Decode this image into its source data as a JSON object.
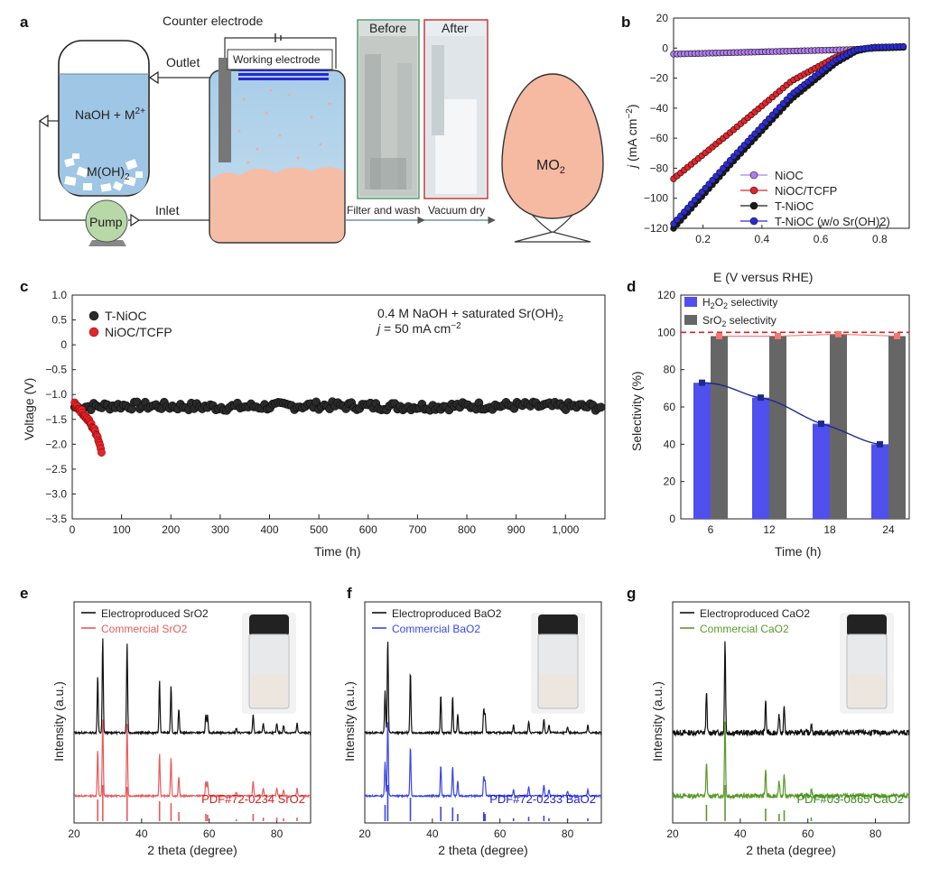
{
  "colors": {
    "black": "#1a1a1a",
    "red": "#e5252a",
    "blue": "#2b2bd6",
    "purple": "#b27cf0",
    "pink": "#f07a72",
    "sro2": "#e85a5a",
    "bao2": "#3a46e6",
    "cao2": "#5a9a2a",
    "h2o2_bar": "#5050ee",
    "sro2_bar": "#666666",
    "liquid": "#9fc6e4",
    "precip": "#f6b9a2"
  },
  "panel_a": {
    "letter": "a",
    "counter_electrode": "Counter electrode",
    "outlet": "Outlet",
    "working_electrode": "Working electrode",
    "inlet": "Inlet",
    "solution": "NaOH + M",
    "solution_sup": "2+",
    "hydroxide": "M(OH)",
    "hydroxide_sub": "2",
    "pump": "Pump",
    "before": "Before",
    "after": "After",
    "filter": "Filter and wash",
    "dry": "Vacuum dry",
    "product": "MO",
    "product_sub": "2"
  },
  "chart_data": [
    {
      "panel": "b",
      "type": "line",
      "xlabel": "E (V versus RHE)",
      "ylabel": "j (mA cm−2)",
      "xlim": [
        0.1,
        0.9
      ],
      "ylim": [
        -120,
        20
      ],
      "xticks": [
        "0.2",
        "0.4",
        "0.6",
        "0.8"
      ],
      "yticks": [
        "20",
        "0",
        "−20",
        "−40",
        "−60",
        "−80",
        "−100",
        "−120"
      ],
      "legend_position": "bottom-left",
      "series": [
        {
          "name": "NiOC",
          "x": [
            0.1,
            0.3,
            0.5,
            0.7,
            0.8,
            0.88
          ],
          "y": [
            -4,
            -3,
            -2,
            -1,
            0,
            0.5
          ]
        },
        {
          "name": "NiOC/TCFP",
          "x": [
            0.1,
            0.3,
            0.5,
            0.65,
            0.72,
            0.78,
            0.88
          ],
          "y": [
            -87,
            -55,
            -22,
            -6,
            -1,
            0.5,
            0.8
          ]
        },
        {
          "name": "T-NiOC",
          "x": [
            0.1,
            0.3,
            0.5,
            0.65,
            0.72,
            0.78,
            0.88
          ],
          "y": [
            -120,
            -76,
            -34,
            -10,
            -2,
            0.5,
            1
          ]
        },
        {
          "name": "T-NiOC (w/o Sr(OH)2)",
          "x": [
            0.1,
            0.3,
            0.5,
            0.65,
            0.72,
            0.78,
            0.88
          ],
          "y": [
            -117,
            -73,
            -31,
            -8,
            -1,
            0.5,
            1
          ]
        }
      ]
    },
    {
      "panel": "c",
      "type": "line",
      "xlabel": "Time (h)",
      "ylabel": "Voltage (V)",
      "xlim": [
        0,
        1080
      ],
      "ylim": [
        -3.5,
        1.0
      ],
      "xticks": [
        "0",
        "100",
        "200",
        "300",
        "400",
        "500",
        "600",
        "700",
        "800",
        "900",
        "1,000"
      ],
      "yticks": [
        "1.0",
        "0.5",
        "0",
        "−0.5",
        "−1.0",
        "−1.5",
        "−2.0",
        "−2.5",
        "−3.0",
        "−3.5"
      ],
      "annotation_1": "0.4 M NaOH + saturated Sr(OH)2",
      "annotation_2": "j = 50 mA cm−2",
      "legend_position": "top-left",
      "series": [
        {
          "name": "T-NiOC",
          "x": [
            5,
            100,
            300,
            500,
            700,
            900,
            1075
          ],
          "y": [
            -1.25,
            -1.22,
            -1.25,
            -1.22,
            -1.24,
            -1.22,
            -1.25
          ]
        },
        {
          "name": "NiOC/TCFP",
          "x": [
            5,
            20,
            35,
            50,
            60
          ],
          "y": [
            -1.2,
            -1.35,
            -1.55,
            -1.8,
            -2.15
          ]
        }
      ]
    },
    {
      "panel": "d",
      "type": "bar",
      "xlabel": "Time (h)",
      "ylabel": "Selectivity (%)",
      "categories": [
        "6",
        "12",
        "18",
        "24"
      ],
      "ylim": [
        0,
        120
      ],
      "yticks": [
        "0",
        "20",
        "40",
        "60",
        "80",
        "100",
        "120"
      ],
      "reference_line": 100,
      "series": [
        {
          "name": "H2O2 selectivity",
          "values": [
            73,
            65,
            51,
            40
          ]
        },
        {
          "name": "SrO2 selectivity",
          "values": [
            98,
            98,
            99,
            98
          ]
        }
      ]
    },
    {
      "panel": "e",
      "type": "line",
      "xlabel": "2 theta (degree)",
      "ylabel": "Intensity (a.u.)",
      "xlim": [
        20,
        90
      ],
      "xticks": [
        "20",
        "40",
        "60",
        "80"
      ],
      "legend": [
        "Electroproduced SrO2",
        "Commercial SrO2"
      ],
      "reference_label": "PDF#72-0234 SrO2",
      "peaks": [
        27,
        28.5,
        35.7,
        45.3,
        48.7,
        51,
        59,
        59.5,
        68,
        73,
        76,
        80,
        82,
        86
      ],
      "intensities": [
        0.6,
        1.0,
        0.95,
        0.55,
        0.5,
        0.25,
        0.2,
        0.18,
        0.05,
        0.2,
        0.1,
        0.1,
        0.08,
        0.1
      ]
    },
    {
      "panel": "f",
      "type": "line",
      "xlabel": "2 theta (degree)",
      "ylabel": "Intensity (a.u.)",
      "xlim": [
        20,
        90
      ],
      "xticks": [
        "20",
        "40",
        "60",
        "80"
      ],
      "legend": [
        "Electroproduced BaO2",
        "Commercial BaO2"
      ],
      "reference_label": "PDF#72-0233 BaO2",
      "peaks": [
        26,
        26.8,
        33.5,
        42.5,
        46,
        47.5,
        55.2,
        55.6,
        64,
        68.5,
        73,
        74.5,
        80,
        86
      ],
      "intensities": [
        0.45,
        1.0,
        0.65,
        0.4,
        0.38,
        0.2,
        0.25,
        0.2,
        0.08,
        0.12,
        0.15,
        0.08,
        0.06,
        0.08
      ]
    },
    {
      "panel": "g",
      "type": "line",
      "xlabel": "2 theta (degree)",
      "ylabel": "Intensity (a.u.)",
      "xlim": [
        20,
        90
      ],
      "xticks": [
        "20",
        "40",
        "60",
        "80"
      ],
      "legend": [
        "Electroproduced CaO2",
        "Commercial CaO2"
      ],
      "reference_label": "PDF#03-0865 CaO2",
      "peaks": [
        30,
        35.5,
        47.5,
        51.5,
        53,
        61
      ],
      "intensities": [
        0.45,
        1.0,
        0.35,
        0.2,
        0.3,
        0.1
      ]
    }
  ]
}
